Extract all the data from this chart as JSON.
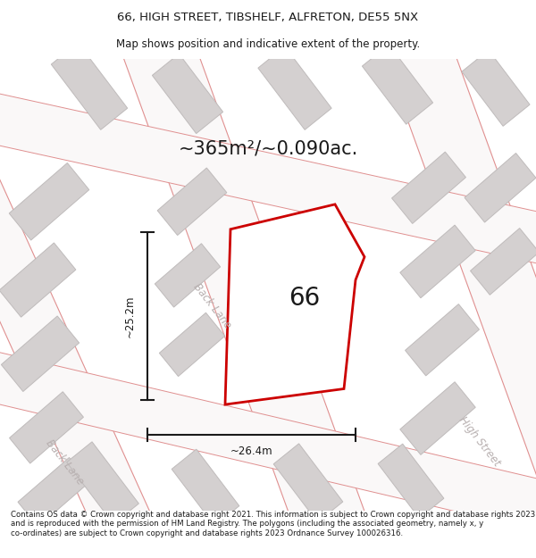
{
  "title_line1": "66, HIGH STREET, TIBSHELF, ALFRETON, DE55 5NX",
  "title_line2": "Map shows position and indicative extent of the property.",
  "area_text": "~365m²/~0.090ac.",
  "label_66": "66",
  "label_back_lane_center": "Back Lane",
  "label_back_lane_left": "Back Lane",
  "label_high_street": "High Street",
  "dim_vertical": "~25.2m",
  "dim_horizontal": "~26.4m",
  "footer_text": "Contains OS data © Crown copyright and database right 2021. This information is subject to Crown copyright and database rights 2023 and is reproduced with the permission of HM Land Registry. The polygons (including the associated geometry, namely x, y co-ordinates) are subject to Crown copyright and database rights 2023 Ordnance Survey 100026316.",
  "bg_color": "#f5f3f3",
  "map_bg": "#ede9e9",
  "building_color": "#d4d0d0",
  "building_edge_color": "#bfbbbb",
  "road_color": "#faf8f8",
  "road_edge_color": "#e09090",
  "plot_outline_color": "#cc0000",
  "plot_fill_color": "#ffffff",
  "dim_line_color": "#1a1a1a",
  "text_color": "#1a1a1a",
  "street_label_color": "#b8b0b0",
  "fig_width": 6.0,
  "fig_height": 6.25,
  "title_fontsize": 9.5,
  "subtitle_fontsize": 8.5,
  "area_fontsize": 15,
  "label_fontsize": 20,
  "dim_fontsize": 8.5,
  "street_fontsize": 8.5,
  "footer_fontsize": 6.2
}
